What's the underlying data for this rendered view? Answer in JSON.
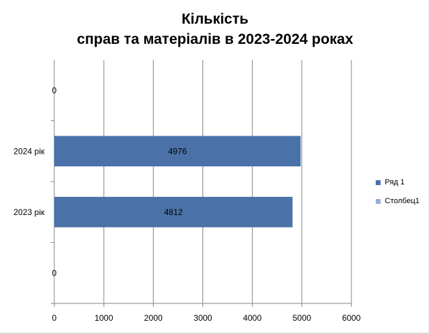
{
  "chart_data": {
    "type": "bar",
    "orientation": "horizontal",
    "title_line1": "Кількість",
    "title_line2": "справ та матеріалів в 2023-2024  роках",
    "categories": [
      "",
      "2023 рік",
      "2024 рік",
      ""
    ],
    "series": [
      {
        "name": "Ряд 1",
        "values": [
          0,
          4812,
          4976,
          0
        ],
        "color": "#4a72a8"
      },
      {
        "name": "Столбец1",
        "values": [
          null,
          null,
          null,
          null
        ],
        "color": "#95b1d6"
      }
    ],
    "x_ticks": [
      "0",
      "1000",
      "2000",
      "3000",
      "4000",
      "5000",
      "6000"
    ],
    "xlim": [
      0,
      6000
    ],
    "grid": "vertical",
    "legend": "right"
  }
}
